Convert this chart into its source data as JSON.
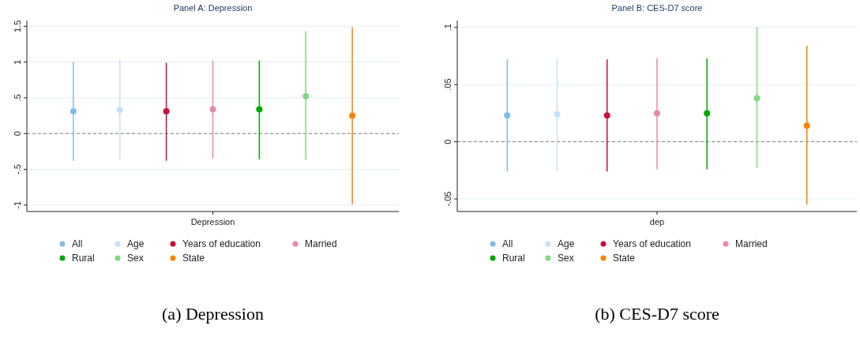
{
  "chart_data": [
    {
      "type": "scatter",
      "title": "Panel A: Depression",
      "categories": [
        "Depression"
      ],
      "ylim": [
        -1.09,
        1.58
      ],
      "yticks": [
        {
          "value": -1,
          "label": "-1"
        },
        {
          "value": -0.5,
          "label": "-.5"
        },
        0,
        {
          "value": 0.5,
          "label": ".5"
        },
        1,
        1.5
      ],
      "grid": "y",
      "legend": "bottom",
      "marker": "circle",
      "ref_lines": [
        {
          "axis": "y",
          "value": 0,
          "line_style": "dashed",
          "color": "#808080"
        }
      ],
      "annotations": [
        "(a) Depression"
      ],
      "series": [
        {
          "name": "All",
          "color": "#7fbde8",
          "values": [
            0.31
          ],
          "errors": [
            [
              -0.38,
              1.0
            ]
          ]
        },
        {
          "name": "Age",
          "color": "#c6e0f5",
          "values": [
            0.33
          ],
          "errors": [
            [
              -0.37,
              1.03
            ]
          ]
        },
        {
          "name": "Years of education",
          "color": "#c8103c",
          "values": [
            0.31
          ],
          "errors": [
            [
              -0.38,
              0.99
            ]
          ]
        },
        {
          "name": "Married",
          "color": "#e88aa0",
          "values": [
            0.34
          ],
          "errors": [
            [
              -0.35,
              1.02
            ]
          ]
        },
        {
          "name": "Rural",
          "color": "#00a800",
          "values": [
            0.34
          ],
          "errors": [
            [
              -0.36,
              1.02
            ]
          ]
        },
        {
          "name": "Sex",
          "color": "#80d880",
          "values": [
            0.52
          ],
          "errors": [
            [
              -0.37,
              1.43
            ]
          ]
        },
        {
          "name": "State",
          "color": "#ff8000",
          "values": [
            0.25
          ],
          "errors": [
            [
              -0.99,
              1.49
            ]
          ]
        }
      ]
    },
    {
      "type": "scatter",
      "title": "Panel B: CES-D7 score",
      "categories": [
        "dep"
      ],
      "ylim": [
        -0.061,
        0.106
      ],
      "yticks": [
        {
          "value": -0.05,
          "label": "-.05"
        },
        0,
        {
          "value": 0.05,
          "label": ".05"
        },
        {
          "value": 0.1,
          "label": ".1"
        }
      ],
      "grid": "y",
      "legend": "bottom",
      "marker": "circle",
      "ref_lines": [
        {
          "axis": "y",
          "value": 0,
          "line_style": "dashed",
          "color": "#808080"
        }
      ],
      "annotations": [
        "(b) CES-D7 score"
      ],
      "series": [
        {
          "name": "All",
          "color": "#7fbde8",
          "values": [
            0.023
          ],
          "errors": [
            [
              -0.026,
              0.072
            ]
          ]
        },
        {
          "name": "Age",
          "color": "#c6e0f5",
          "values": [
            0.024
          ],
          "errors": [
            [
              -0.025,
              0.073
            ]
          ]
        },
        {
          "name": "Years of education",
          "color": "#c8103c",
          "values": [
            0.023
          ],
          "errors": [
            [
              -0.026,
              0.072
            ]
          ]
        },
        {
          "name": "Married",
          "color": "#e88aa0",
          "values": [
            0.025
          ],
          "errors": [
            [
              -0.024,
              0.073
            ]
          ]
        },
        {
          "name": "Rural",
          "color": "#00a800",
          "values": [
            0.025
          ],
          "errors": [
            [
              -0.024,
              0.073
            ]
          ]
        },
        {
          "name": "Sex",
          "color": "#80d880",
          "values": [
            0.038
          ],
          "errors": [
            [
              -0.023,
              0.1
            ]
          ]
        },
        {
          "name": "State",
          "color": "#ff8000",
          "values": [
            0.014
          ],
          "errors": [
            [
              -0.055,
              0.084
            ]
          ]
        }
      ]
    }
  ]
}
